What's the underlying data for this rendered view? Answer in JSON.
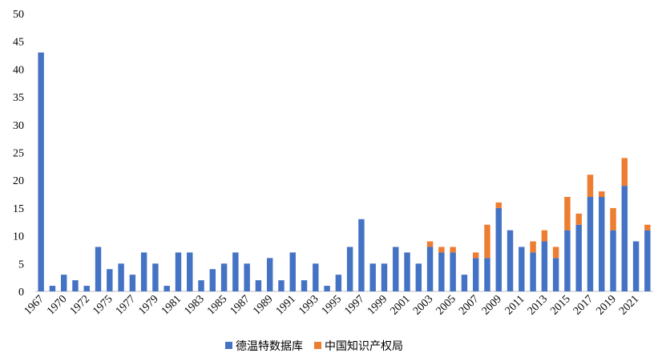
{
  "chart_data": {
    "type": "stacked_bar",
    "categories": [
      "1967",
      null,
      "1970",
      null,
      "1972",
      null,
      "1975",
      null,
      "1977",
      null,
      "1979",
      null,
      "1981",
      null,
      "1983",
      null,
      "1985",
      null,
      "1987",
      null,
      "1989",
      null,
      "1991",
      null,
      "1993",
      null,
      "1995",
      null,
      "1997",
      null,
      "1999",
      null,
      "2001",
      null,
      "2003",
      null,
      "2005",
      null,
      "2007",
      null,
      "2009",
      null,
      "2011",
      null,
      "2013",
      null,
      "2015",
      null,
      "2017",
      null,
      "2019",
      null,
      "2021",
      null
    ],
    "series": [
      {
        "name": "德温特数据库",
        "color": "#4472c4",
        "values": [
          43,
          1,
          3,
          2,
          1,
          8,
          4,
          5,
          3,
          7,
          5,
          1,
          7,
          7,
          2,
          4,
          5,
          7,
          5,
          2,
          6,
          2,
          7,
          2,
          5,
          1,
          3,
          8,
          13,
          5,
          5,
          8,
          7,
          5,
          8,
          7,
          7,
          3,
          6,
          6,
          15,
          11,
          8,
          7,
          9,
          6,
          11,
          12,
          17,
          17,
          11,
          19,
          9,
          11
        ]
      },
      {
        "name": "中国知识产权局",
        "color": "#ed7d31",
        "values": [
          0,
          0,
          0,
          0,
          0,
          0,
          0,
          0,
          0,
          0,
          0,
          0,
          0,
          0,
          0,
          0,
          0,
          0,
          0,
          0,
          0,
          0,
          0,
          0,
          0,
          0,
          0,
          0,
          0,
          0,
          0,
          0,
          0,
          0,
          1,
          1,
          1,
          0,
          1,
          6,
          1,
          0,
          0,
          2,
          2,
          2,
          6,
          2,
          4,
          1,
          4,
          5,
          0,
          1
        ]
      }
    ],
    "ylim": [
      0,
      50
    ],
    "yticks": [
      0,
      5,
      10,
      15,
      20,
      25,
      30,
      35,
      40,
      45,
      50
    ],
    "grid": false,
    "legend": "bottom"
  }
}
